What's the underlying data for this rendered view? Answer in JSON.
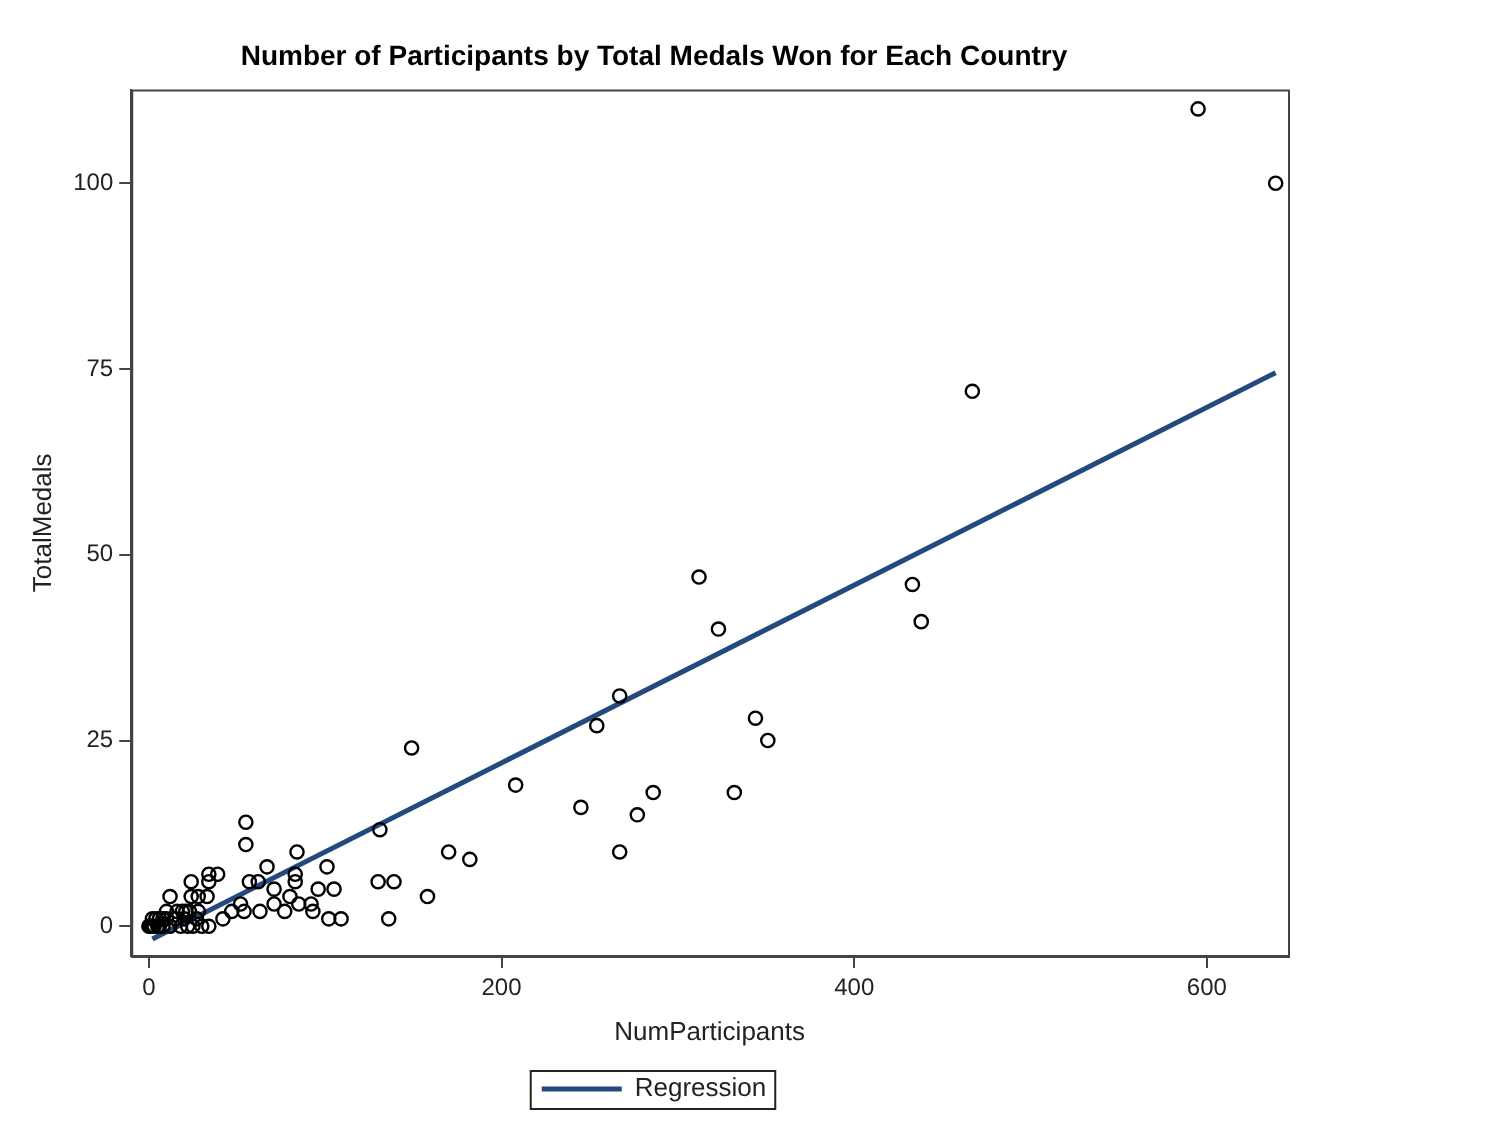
{
  "chart_data": {
    "type": "scatter",
    "title": "Number of Participants by Total Medals Won for Each Country",
    "xlabel": "NumParticipants",
    "ylabel": "TotalMedals",
    "xlim": [
      -10,
      646
    ],
    "xticks": [
      0,
      200,
      400,
      600
    ],
    "ylim": [
      -4,
      112.6
    ],
    "yticks": [
      0,
      25,
      50,
      75,
      100
    ],
    "grid": false,
    "legend": "bottom",
    "marker": "circle",
    "series": [
      {
        "color": "#000000",
        "x": [
          595,
          639,
          467,
          433,
          438,
          312,
          323,
          267,
          254,
          344,
          351,
          332,
          286,
          277,
          245,
          267,
          208,
          149,
          170,
          182,
          158,
          131,
          130,
          139,
          136,
          101,
          105,
          96,
          102,
          109,
          93,
          92,
          84,
          83,
          83,
          85,
          80,
          77,
          71,
          71,
          67,
          63,
          62,
          57,
          55,
          55,
          54,
          52,
          47,
          42,
          39,
          34,
          34,
          33,
          34,
          28,
          24,
          24,
          23,
          25,
          12,
          19,
          10,
          8,
          6,
          2,
          0,
          1,
          2,
          3,
          4,
          5,
          6,
          8,
          10,
          12,
          15,
          18,
          20,
          22,
          27,
          30,
          16,
          21,
          28
        ],
        "values": [
          110,
          100,
          72,
          46,
          41,
          47,
          40,
          31,
          27,
          28,
          25,
          18,
          18,
          15,
          16,
          10,
          19,
          24,
          10,
          9,
          4,
          13,
          6,
          6,
          1,
          8,
          5,
          5,
          1,
          1,
          2,
          3,
          10,
          6,
          7,
          3,
          4,
          2,
          3,
          5,
          8,
          2,
          6,
          6,
          14,
          11,
          2,
          3,
          2,
          1,
          7,
          7,
          0,
          4,
          6,
          4,
          6,
          4,
          2,
          0,
          4,
          2,
          2,
          1,
          0,
          0,
          0,
          0,
          1,
          0,
          1,
          0,
          1,
          0,
          1,
          0,
          1,
          0,
          1,
          0,
          1,
          0,
          2,
          2,
          2
        ]
      },
      {
        "type": "line",
        "name": "Regression",
        "color": "#23497f",
        "marker": "none",
        "x": [
          2,
          639
        ],
        "values": [
          -1.7,
          74.5
        ]
      }
    ]
  }
}
